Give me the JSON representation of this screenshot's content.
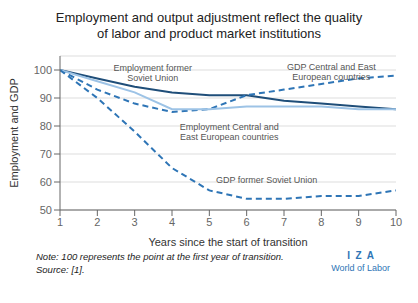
{
  "chart_data": {
    "type": "line",
    "title": "Employment and output adjustment reflect the quality\nof labor and product market institutions",
    "xlabel": "Years since the start of transition",
    "ylabel": "Employment and GDP",
    "x": [
      1,
      2,
      3,
      4,
      5,
      6,
      7,
      8,
      9,
      10
    ],
    "series": [
      {
        "name": "Employment former\nSoviet Union",
        "color": "#1f4e79",
        "line_style": "solid",
        "values": [
          100,
          97,
          94,
          92,
          91,
          91,
          89,
          88,
          87,
          86
        ]
      },
      {
        "name": "GDP Central and East\nEuropean countries",
        "color": "#2e75b6",
        "line_style": "dashed",
        "values": [
          100,
          93,
          88,
          85,
          86,
          91,
          93,
          95,
          97,
          98
        ]
      },
      {
        "name": "Employment Central and\nEast European countries",
        "color": "#9dc3e6",
        "line_style": "solid",
        "values": [
          100,
          96,
          92,
          86,
          86,
          87,
          87,
          87,
          86,
          86
        ]
      },
      {
        "name": "GDP former Soviet Union",
        "color": "#2e75b6",
        "line_style": "dashed",
        "values": [
          100,
          90,
          78,
          65,
          57,
          54,
          54,
          55,
          55,
          57
        ]
      }
    ],
    "xlim": [
      1,
      10
    ],
    "ylim": [
      50,
      105
    ],
    "xticks": [
      1,
      2,
      3,
      4,
      5,
      6,
      7,
      8,
      9,
      10
    ],
    "yticks": [
      50,
      60,
      70,
      80,
      90,
      100
    ],
    "grid": true,
    "annotations": [
      {
        "text": "Note: 100 represents the point at the first year of transition.",
        "color": "#222222"
      },
      {
        "text": "Source: [1].",
        "color": "#222222"
      },
      {
        "text": "I  Z  A",
        "color": "#2e75b6"
      },
      {
        "text": "World of Labor",
        "color": "#2e75b6"
      }
    ]
  }
}
